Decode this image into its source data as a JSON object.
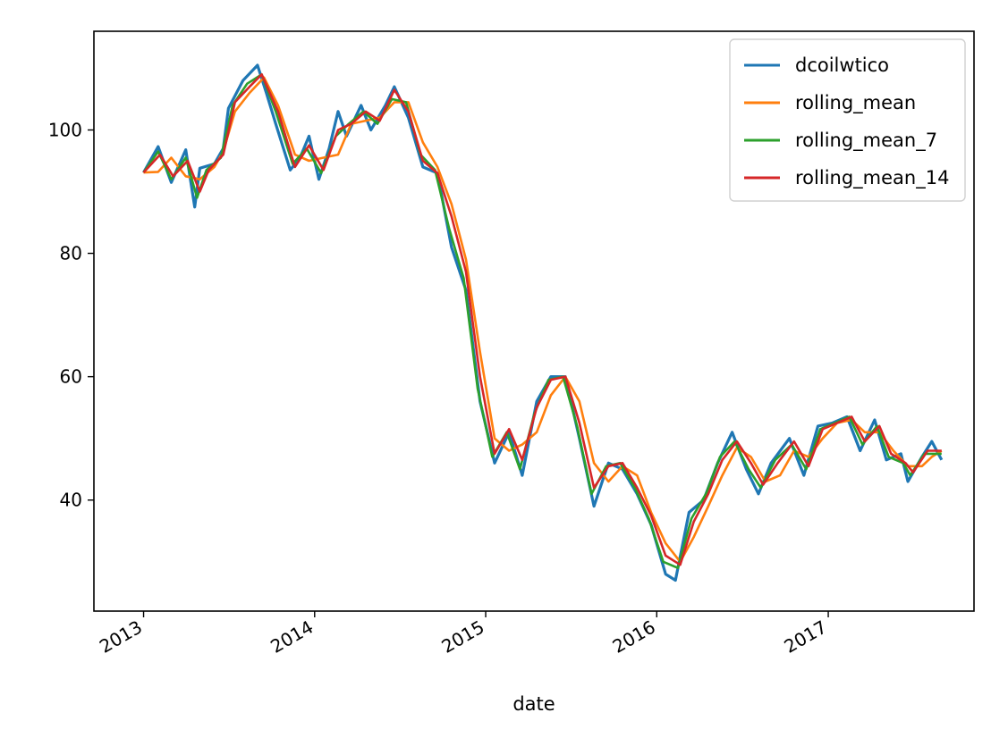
{
  "chart_data": {
    "type": "line",
    "title": "",
    "xlabel": "date",
    "ylabel": "",
    "x_ticks": [
      "2013",
      "2014",
      "2015",
      "2016",
      "2017"
    ],
    "y_ticks": [
      40,
      60,
      80,
      100
    ],
    "xlim": [
      "2012-09-17",
      "2017-11-08"
    ],
    "ylim": [
      22,
      116
    ],
    "legend": "top-right",
    "grid": false,
    "series": [
      {
        "name": "dcoilwtico",
        "color": "#1f77b4",
        "points": [
          [
            "2013-01-01",
            93.1
          ],
          [
            "2013-02-01",
            97.3
          ],
          [
            "2013-03-01",
            91.5
          ],
          [
            "2013-04-01",
            96.8
          ],
          [
            "2013-04-20",
            87.5
          ],
          [
            "2013-05-01",
            93.8
          ],
          [
            "2013-06-01",
            94.5
          ],
          [
            "2013-06-20",
            97.0
          ],
          [
            "2013-07-01",
            103.5
          ],
          [
            "2013-08-01",
            108.0
          ],
          [
            "2013-09-01",
            110.5
          ],
          [
            "2013-09-20",
            106.0
          ],
          [
            "2013-10-10",
            101.0
          ],
          [
            "2013-11-10",
            93.5
          ],
          [
            "2013-12-01",
            95.5
          ],
          [
            "2013-12-20",
            99.0
          ],
          [
            "2014-01-10",
            92.0
          ],
          [
            "2014-02-01",
            97.0
          ],
          [
            "2014-02-20",
            103.0
          ],
          [
            "2014-03-10",
            99.0
          ],
          [
            "2014-04-10",
            104.0
          ],
          [
            "2014-05-01",
            100.0
          ],
          [
            "2014-06-01",
            104.0
          ],
          [
            "2014-06-20",
            107.0
          ],
          [
            "2014-07-20",
            102.0
          ],
          [
            "2014-08-20",
            94.0
          ],
          [
            "2014-09-20",
            93.0
          ],
          [
            "2014-10-20",
            81.0
          ],
          [
            "2014-11-20",
            74.0
          ],
          [
            "2014-12-20",
            56.0
          ],
          [
            "2015-01-20",
            46.0
          ],
          [
            "2015-02-20",
            51.0
          ],
          [
            "2015-03-20",
            44.0
          ],
          [
            "2015-04-20",
            56.0
          ],
          [
            "2015-05-20",
            60.0
          ],
          [
            "2015-06-20",
            60.0
          ],
          [
            "2015-07-20",
            50.0
          ],
          [
            "2015-08-20",
            39.0
          ],
          [
            "2015-09-20",
            46.0
          ],
          [
            "2015-10-20",
            45.0
          ],
          [
            "2015-11-20",
            41.0
          ],
          [
            "2015-12-20",
            36.0
          ],
          [
            "2016-01-20",
            28.0
          ],
          [
            "2016-02-10",
            27.0
          ],
          [
            "2016-03-10",
            38.0
          ],
          [
            "2016-04-10",
            40.0
          ],
          [
            "2016-05-10",
            46.0
          ],
          [
            "2016-06-10",
            51.0
          ],
          [
            "2016-07-10",
            45.0
          ],
          [
            "2016-08-05",
            41.0
          ],
          [
            "2016-09-01",
            46.0
          ],
          [
            "2016-10-10",
            50.0
          ],
          [
            "2016-11-10",
            44.0
          ],
          [
            "2016-12-10",
            52.0
          ],
          [
            "2017-01-10",
            52.5
          ],
          [
            "2017-02-10",
            53.5
          ],
          [
            "2017-03-10",
            48.0
          ],
          [
            "2017-04-10",
            53.0
          ],
          [
            "2017-05-05",
            46.5
          ],
          [
            "2017-06-05",
            47.5
          ],
          [
            "2017-06-20",
            43.0
          ],
          [
            "2017-07-20",
            47.0
          ],
          [
            "2017-08-10",
            49.5
          ],
          [
            "2017-08-31",
            46.5
          ]
        ]
      },
      {
        "name": "rolling_mean",
        "color": "#ff7f0e",
        "points": [
          [
            "2013-01-01",
            93.1
          ],
          [
            "2013-02-01",
            93.2
          ],
          [
            "2013-03-01",
            95.5
          ],
          [
            "2013-04-01",
            92.5
          ],
          [
            "2013-05-01",
            92.0
          ],
          [
            "2013-06-01",
            94.0
          ],
          [
            "2013-06-20",
            96.5
          ],
          [
            "2013-07-15",
            103.0
          ],
          [
            "2013-08-15",
            106.0
          ],
          [
            "2013-09-15",
            108.5
          ],
          [
            "2013-10-15",
            104.0
          ],
          [
            "2013-11-20",
            96.0
          ],
          [
            "2013-12-20",
            95.0
          ],
          [
            "2014-01-20",
            95.5
          ],
          [
            "2014-02-20",
            96.0
          ],
          [
            "2014-03-20",
            101.0
          ],
          [
            "2014-04-20",
            101.5
          ],
          [
            "2014-05-20",
            102.0
          ],
          [
            "2014-06-20",
            104.5
          ],
          [
            "2014-07-20",
            104.5
          ],
          [
            "2014-08-20",
            98.0
          ],
          [
            "2014-09-20",
            94.0
          ],
          [
            "2014-10-20",
            88.0
          ],
          [
            "2014-11-20",
            79.0
          ],
          [
            "2014-12-20",
            64.0
          ],
          [
            "2015-01-20",
            50.0
          ],
          [
            "2015-02-20",
            48.0
          ],
          [
            "2015-03-20",
            49.0
          ],
          [
            "2015-04-20",
            51.0
          ],
          [
            "2015-05-20",
            57.0
          ],
          [
            "2015-06-20",
            60.0
          ],
          [
            "2015-07-20",
            56.0
          ],
          [
            "2015-08-20",
            46.0
          ],
          [
            "2015-09-20",
            43.0
          ],
          [
            "2015-10-20",
            45.5
          ],
          [
            "2015-11-20",
            44.0
          ],
          [
            "2015-12-20",
            38.0
          ],
          [
            "2016-01-20",
            33.0
          ],
          [
            "2016-02-20",
            30.0
          ],
          [
            "2016-03-20",
            34.0
          ],
          [
            "2016-04-20",
            39.0
          ],
          [
            "2016-05-20",
            44.0
          ],
          [
            "2016-06-20",
            48.5
          ],
          [
            "2016-07-20",
            47.0
          ],
          [
            "2016-08-20",
            43.0
          ],
          [
            "2016-09-20",
            44.0
          ],
          [
            "2016-10-20",
            48.0
          ],
          [
            "2016-11-20",
            47.0
          ],
          [
            "2016-12-20",
            50.0
          ],
          [
            "2017-01-20",
            52.5
          ],
          [
            "2017-02-20",
            53.0
          ],
          [
            "2017-03-20",
            51.0
          ],
          [
            "2017-04-20",
            51.0
          ],
          [
            "2017-05-20",
            48.0
          ],
          [
            "2017-06-20",
            45.5
          ],
          [
            "2017-07-20",
            45.5
          ],
          [
            "2017-08-10",
            47.0
          ],
          [
            "2017-08-31",
            48.0
          ]
        ]
      },
      {
        "name": "rolling_mean_7",
        "color": "#2ca02c",
        "points": [
          [
            "2013-01-01",
            93.1
          ],
          [
            "2013-02-01",
            96.5
          ],
          [
            "2013-03-01",
            92.0
          ],
          [
            "2013-04-01",
            95.5
          ],
          [
            "2013-04-25",
            89.0
          ],
          [
            "2013-05-15",
            93.5
          ],
          [
            "2013-06-15",
            95.5
          ],
          [
            "2013-07-10",
            104.0
          ],
          [
            "2013-08-10",
            107.5
          ],
          [
            "2013-09-10",
            109.0
          ],
          [
            "2013-10-10",
            103.0
          ],
          [
            "2013-11-15",
            94.5
          ],
          [
            "2013-12-15",
            97.0
          ],
          [
            "2014-01-15",
            93.0
          ],
          [
            "2014-02-15",
            99.0
          ],
          [
            "2014-03-15",
            101.0
          ],
          [
            "2014-04-15",
            103.0
          ],
          [
            "2014-05-15",
            101.0
          ],
          [
            "2014-06-15",
            105.0
          ],
          [
            "2014-07-15",
            104.5
          ],
          [
            "2014-08-15",
            96.0
          ],
          [
            "2014-09-15",
            93.5
          ],
          [
            "2014-10-15",
            84.0
          ],
          [
            "2014-11-15",
            76.0
          ],
          [
            "2014-12-15",
            58.0
          ],
          [
            "2015-01-15",
            47.0
          ],
          [
            "2015-02-15",
            51.0
          ],
          [
            "2015-03-15",
            45.0
          ],
          [
            "2015-04-15",
            54.0
          ],
          [
            "2015-05-15",
            59.5
          ],
          [
            "2015-06-15",
            60.0
          ],
          [
            "2015-07-15",
            52.0
          ],
          [
            "2015-08-15",
            41.0
          ],
          [
            "2015-09-15",
            45.5
          ],
          [
            "2015-10-15",
            46.0
          ],
          [
            "2015-11-15",
            42.0
          ],
          [
            "2015-12-15",
            37.0
          ],
          [
            "2016-01-15",
            30.0
          ],
          [
            "2016-02-15",
            29.0
          ],
          [
            "2016-03-15",
            37.0
          ],
          [
            "2016-04-15",
            41.0
          ],
          [
            "2016-05-15",
            47.0
          ],
          [
            "2016-06-15",
            49.5
          ],
          [
            "2016-07-15",
            45.0
          ],
          [
            "2016-08-10",
            42.0
          ],
          [
            "2016-09-10",
            46.5
          ],
          [
            "2016-10-15",
            49.0
          ],
          [
            "2016-11-15",
            45.0
          ],
          [
            "2016-12-15",
            51.5
          ],
          [
            "2017-01-15",
            52.5
          ],
          [
            "2017-02-15",
            53.5
          ],
          [
            "2017-03-15",
            49.0
          ],
          [
            "2017-04-15",
            52.0
          ],
          [
            "2017-05-10",
            47.0
          ],
          [
            "2017-06-10",
            46.0
          ],
          [
            "2017-06-25",
            44.0
          ],
          [
            "2017-07-25",
            47.5
          ],
          [
            "2017-08-31",
            47.5
          ]
        ]
      },
      {
        "name": "rolling_mean_14",
        "color": "#d62728",
        "points": [
          [
            "2013-01-01",
            93.1
          ],
          [
            "2013-02-05",
            96.0
          ],
          [
            "2013-03-05",
            92.5
          ],
          [
            "2013-04-05",
            95.0
          ],
          [
            "2013-05-01",
            90.0
          ],
          [
            "2013-05-20",
            93.5
          ],
          [
            "2013-06-20",
            96.0
          ],
          [
            "2013-07-15",
            104.5
          ],
          [
            "2013-08-15",
            107.0
          ],
          [
            "2013-09-10",
            109.0
          ],
          [
            "2013-10-15",
            103.0
          ],
          [
            "2013-11-20",
            94.0
          ],
          [
            "2013-12-20",
            97.5
          ],
          [
            "2014-01-20",
            93.5
          ],
          [
            "2014-02-20",
            100.0
          ],
          [
            "2014-03-20",
            101.0
          ],
          [
            "2014-04-20",
            103.0
          ],
          [
            "2014-05-20",
            101.5
          ],
          [
            "2014-06-20",
            106.5
          ],
          [
            "2014-07-20",
            103.0
          ],
          [
            "2014-08-20",
            95.0
          ],
          [
            "2014-09-20",
            93.0
          ],
          [
            "2014-10-20",
            86.0
          ],
          [
            "2014-11-20",
            77.0
          ],
          [
            "2014-12-20",
            60.0
          ],
          [
            "2015-01-20",
            47.5
          ],
          [
            "2015-02-20",
            51.5
          ],
          [
            "2015-03-20",
            46.5
          ],
          [
            "2015-04-20",
            55.0
          ],
          [
            "2015-05-20",
            59.5
          ],
          [
            "2015-06-20",
            60.0
          ],
          [
            "2015-07-20",
            52.5
          ],
          [
            "2015-08-20",
            42.0
          ],
          [
            "2015-09-20",
            45.5
          ],
          [
            "2015-10-20",
            46.0
          ],
          [
            "2015-11-20",
            42.0
          ],
          [
            "2015-12-20",
            37.5
          ],
          [
            "2016-01-20",
            31.0
          ],
          [
            "2016-02-20",
            29.5
          ],
          [
            "2016-03-20",
            36.5
          ],
          [
            "2016-04-20",
            41.0
          ],
          [
            "2016-05-20",
            46.5
          ],
          [
            "2016-06-20",
            49.5
          ],
          [
            "2016-07-20",
            46.0
          ],
          [
            "2016-08-15",
            42.5
          ],
          [
            "2016-09-15",
            46.0
          ],
          [
            "2016-10-20",
            49.5
          ],
          [
            "2016-11-20",
            45.5
          ],
          [
            "2016-12-20",
            51.5
          ],
          [
            "2017-01-20",
            52.5
          ],
          [
            "2017-02-20",
            53.5
          ],
          [
            "2017-03-20",
            49.5
          ],
          [
            "2017-04-20",
            52.0
          ],
          [
            "2017-05-15",
            47.5
          ],
          [
            "2017-06-15",
            46.0
          ],
          [
            "2017-07-01",
            44.5
          ],
          [
            "2017-08-01",
            48.0
          ],
          [
            "2017-08-31",
            48.0
          ]
        ]
      }
    ]
  }
}
